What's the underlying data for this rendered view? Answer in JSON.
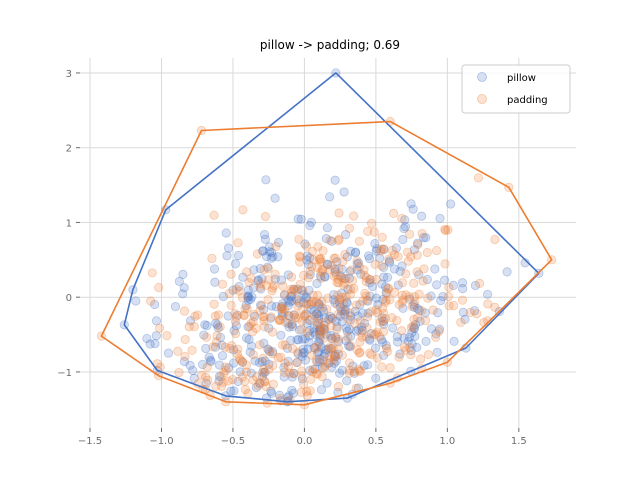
{
  "chart_data": {
    "type": "scatter",
    "title": "pillow -> padding; 0.69",
    "xlabel": "",
    "ylabel": "",
    "xlim": [
      -1.57,
      1.9
    ],
    "ylim": [
      -1.75,
      3.2
    ],
    "xticks": [
      -1.5,
      -1.0,
      -0.5,
      0.0,
      0.5,
      1.0,
      1.5
    ],
    "xtick_labels": [
      "−1.5",
      "−1.0",
      "−0.5",
      "0.0",
      "0.5",
      "1.0",
      "1.5"
    ],
    "yticks": [
      -1,
      0,
      1,
      2,
      3
    ],
    "ytick_labels": [
      "−1",
      "0",
      "1",
      "2",
      "3"
    ],
    "grid": true,
    "legend_position": "top-right",
    "series": [
      {
        "name": "pillow",
        "color": "#4472c4",
        "hull": [
          [
            0.22,
            3.0
          ],
          [
            -0.97,
            1.17
          ],
          [
            -1.2,
            0.1
          ],
          [
            -1.26,
            -0.37
          ],
          [
            -1.03,
            -0.98
          ],
          [
            -0.55,
            -1.32
          ],
          [
            -0.12,
            -1.4
          ],
          [
            0.3,
            -1.35
          ],
          [
            1.13,
            -0.68
          ],
          [
            1.64,
            0.32
          ]
        ]
      },
      {
        "name": "padding",
        "color": "#ed7d31",
        "hull": [
          [
            -0.72,
            2.23
          ],
          [
            0.6,
            2.35
          ],
          [
            1.43,
            1.47
          ],
          [
            1.73,
            0.5
          ],
          [
            1.0,
            -0.87
          ],
          [
            0.6,
            -1.15
          ],
          [
            0.0,
            -1.44
          ],
          [
            -0.55,
            -1.4
          ],
          [
            -1.02,
            -1.05
          ],
          [
            -1.42,
            -0.52
          ]
        ]
      }
    ]
  }
}
